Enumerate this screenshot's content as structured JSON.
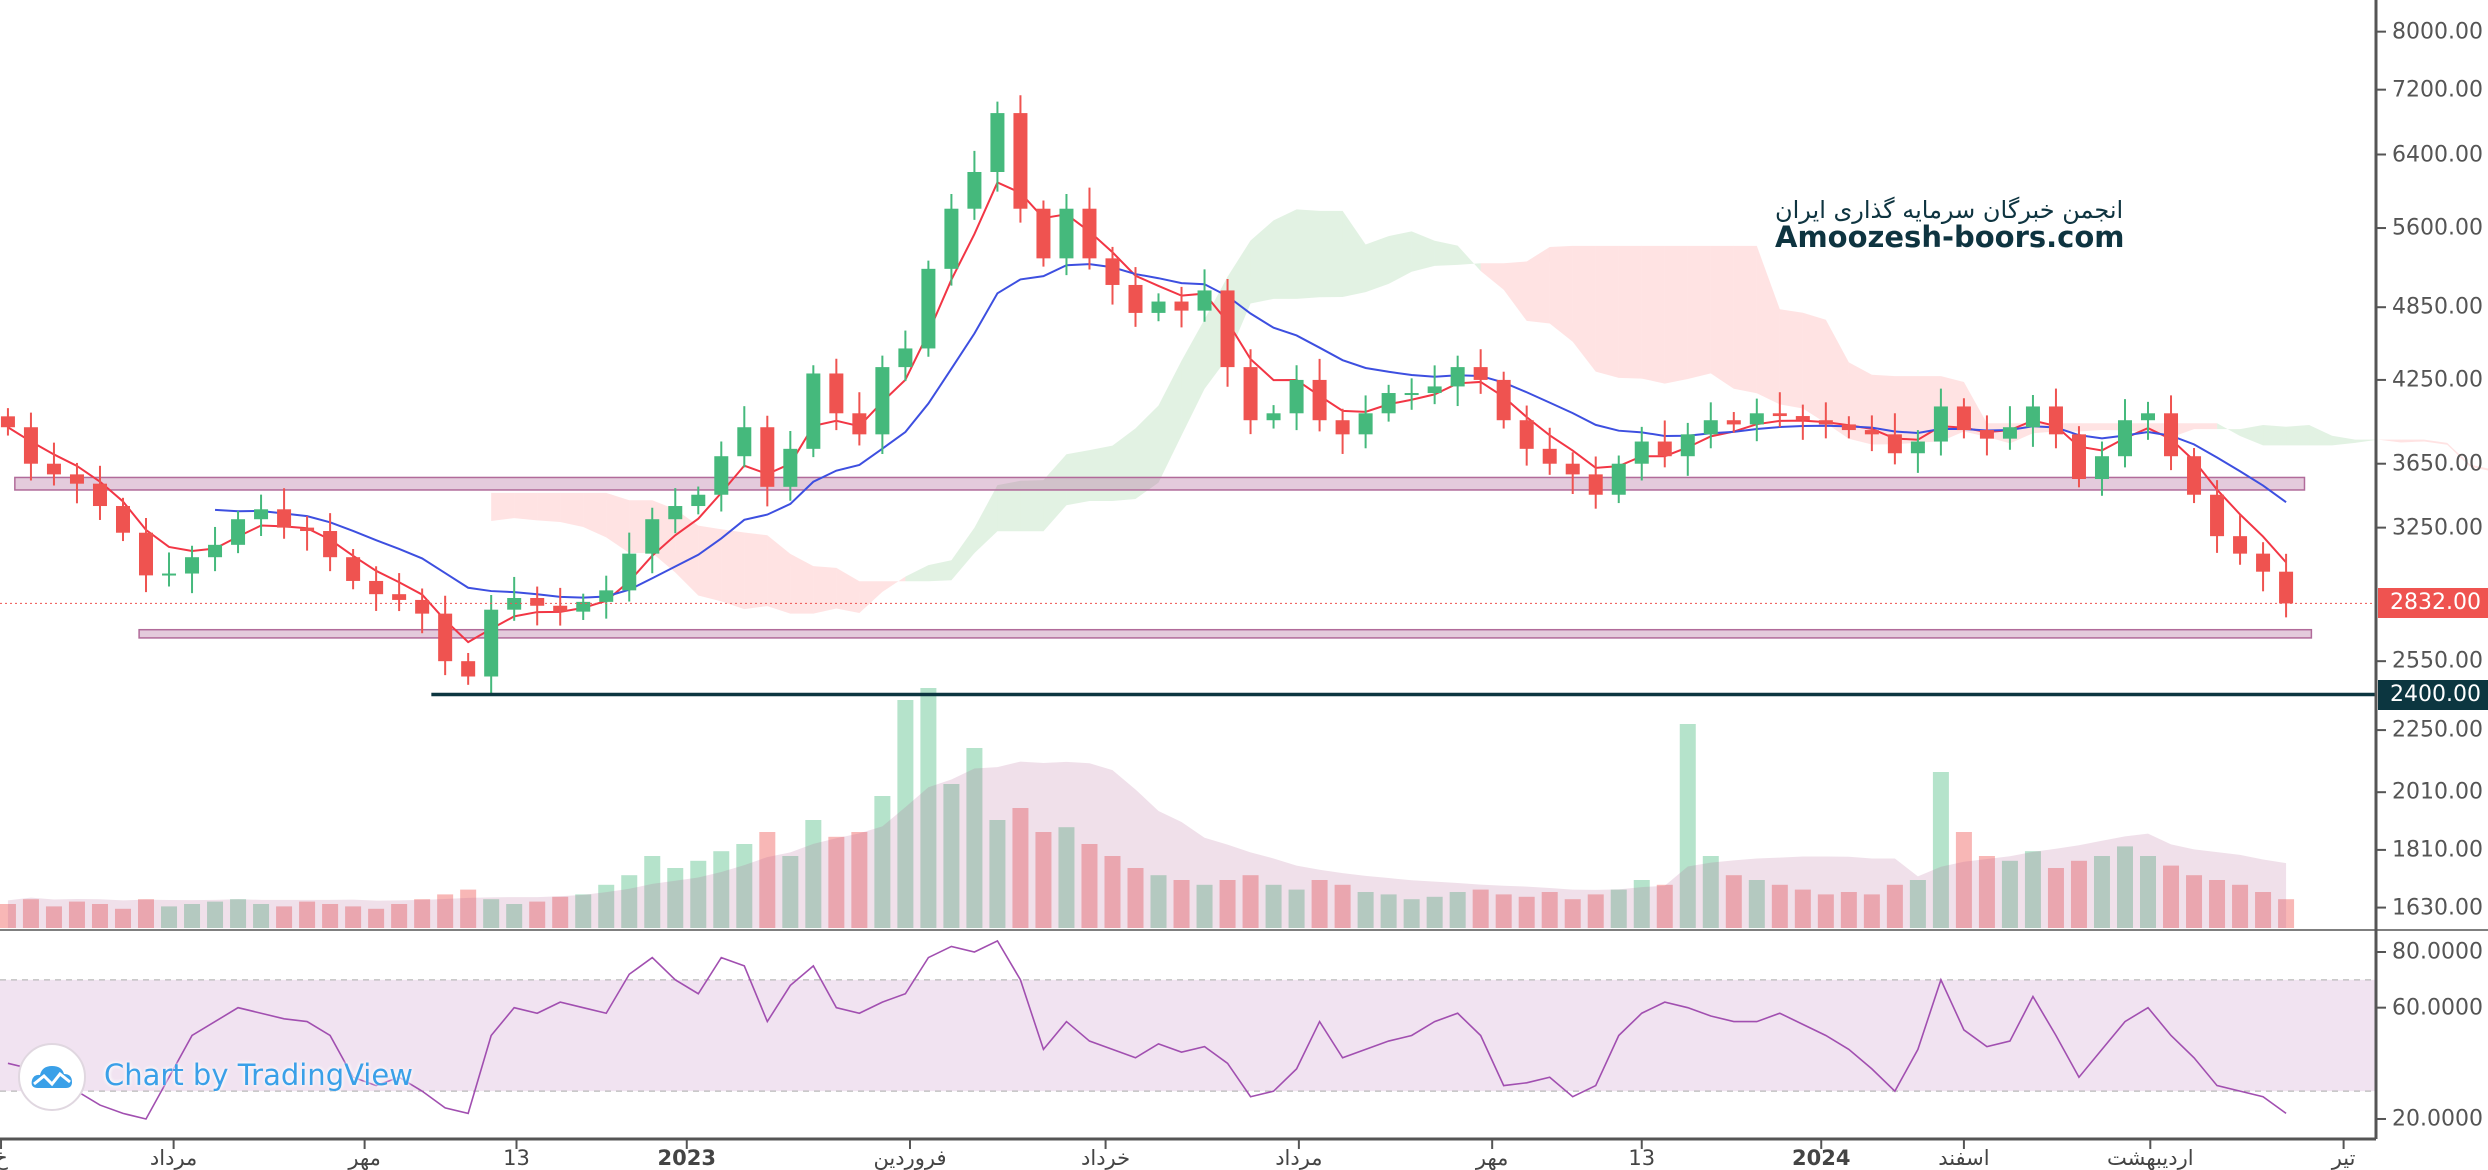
{
  "watermark": {
    "line1": "انجمن خبرگان سرمایه گذاری ایران",
    "line2": "Amoozesh-boors.com"
  },
  "branding": {
    "text": "Chart by TradingView"
  },
  "colors": {
    "up": "#45b97c",
    "down": "#ef5350",
    "ma_fast": "#f23645",
    "ma_slow": "#3d4fe0",
    "rsi": "#a14fb0",
    "last_price": "#ef5350",
    "level": "#0c3640",
    "zone": "#b16b9a"
  },
  "chart_data": {
    "type": "candlestick",
    "title": "",
    "scale": "log",
    "price_ticks": [
      "8000.00",
      "7200.00",
      "6400.00",
      "5600.00",
      "4850.00",
      "4250.00",
      "3650.00",
      "3250.00",
      "2550.00",
      "2250.00",
      "2010.00",
      "1810.00",
      "1630.00"
    ],
    "last_price": {
      "value": 2832,
      "label": "2832.00"
    },
    "level_line": {
      "value": 2400,
      "label": "2400.00",
      "start_index": 18.4
    },
    "zones": [
      {
        "top": 3560,
        "bottom": 3480,
        "start_index": 0.3,
        "end_index": 99.8
      },
      {
        "top": 2700,
        "bottom": 2660,
        "start_index": 5.7,
        "end_index": 100.1
      }
    ],
    "x_labels": [
      {
        "index": -0.3,
        "label": "خ"
      },
      {
        "index": 7.2,
        "label": "مرداد"
      },
      {
        "index": 15.5,
        "label": "مهر"
      },
      {
        "index": 22.1,
        "label": "13"
      },
      {
        "index": 29.5,
        "label": "2023"
      },
      {
        "index": 39.2,
        "label": "فروردین"
      },
      {
        "index": 47.7,
        "label": "خرداد"
      },
      {
        "index": 56.1,
        "label": "مرداد"
      },
      {
        "index": 64.5,
        "label": "مهر"
      },
      {
        "index": 71.0,
        "label": "13"
      },
      {
        "index": 78.8,
        "label": "2024"
      },
      {
        "index": 85.0,
        "label": "اسفند"
      },
      {
        "index": 93.1,
        "label": "اردیبهشت"
      },
      {
        "index": 101.5,
        "label": "تیر"
      }
    ],
    "closes": [
      3900,
      3650,
      3580,
      3520,
      3380,
      3220,
      2980,
      2990,
      3080,
      3150,
      3300,
      3360,
      3250,
      3230,
      3080,
      2950,
      2880,
      2850,
      2780,
      2550,
      2480,
      2800,
      2860,
      2820,
      2790,
      2840,
      2900,
      3100,
      3300,
      3380,
      3450,
      3700,
      3900,
      3500,
      3750,
      4300,
      4000,
      3850,
      4350,
      4500,
      5200,
      5800,
      6200,
      6900,
      5800,
      5300,
      5800,
      5300,
      5050,
      4800,
      4900,
      4820,
      5000,
      4350,
      3950,
      4000,
      4250,
      3950,
      3850,
      4000,
      4150,
      4150,
      4200,
      4350,
      4250,
      3950,
      3750,
      3650,
      3580,
      3450,
      3650,
      3800,
      3700,
      3850,
      3950,
      3920,
      4000,
      3980,
      3950,
      3920,
      3880,
      3850,
      3720,
      3800,
      4050,
      3880,
      3820,
      3900,
      4050,
      3850,
      3550,
      3700,
      3950,
      4000,
      3700,
      3450,
      3200,
      3100,
      3000,
      2832
    ],
    "volume": [
      10,
      12,
      9,
      11,
      10,
      8,
      12,
      9,
      10,
      11,
      12,
      10,
      9,
      11,
      10,
      9,
      8,
      10,
      12,
      14,
      16,
      12,
      10,
      11,
      13,
      14,
      18,
      22,
      30,
      25,
      28,
      32,
      35,
      40,
      30,
      45,
      38,
      40,
      55,
      95,
      100,
      60,
      75,
      45,
      50,
      40,
      42,
      35,
      30,
      25,
      22,
      20,
      18,
      20,
      22,
      18,
      16,
      20,
      18,
      15,
      14,
      12,
      13,
      15,
      16,
      14,
      13,
      15,
      12,
      14,
      16,
      20,
      18,
      85,
      30,
      22,
      20,
      18,
      16,
      14,
      15,
      14,
      18,
      20,
      65,
      40,
      30,
      28,
      32,
      25,
      28,
      30,
      34,
      30,
      26,
      22,
      20,
      18,
      15,
      12
    ],
    "rsi": {
      "ticks": [
        "80.0000",
        "60.0000",
        "20.0000"
      ],
      "band": [
        30,
        70
      ],
      "values": [
        40,
        38,
        35,
        30,
        25,
        22,
        20,
        35,
        50,
        55,
        60,
        58,
        56,
        55,
        50,
        35,
        32,
        35,
        30,
        24,
        22,
        50,
        60,
        58,
        62,
        60,
        58,
        72,
        78,
        70,
        65,
        78,
        75,
        55,
        68,
        75,
        60,
        58,
        62,
        65,
        78,
        82,
        80,
        84,
        70,
        45,
        55,
        48,
        45,
        42,
        47,
        44,
        46,
        40,
        28,
        30,
        38,
        55,
        42,
        45,
        48,
        50,
        55,
        58,
        50,
        32,
        33,
        35,
        28,
        32,
        50,
        58,
        62,
        60,
        57,
        55,
        55,
        58,
        54,
        50,
        45,
        38,
        30,
        45,
        70,
        52,
        46,
        48,
        64,
        50,
        35,
        45,
        55,
        60,
        50,
        42,
        32,
        30,
        28,
        22
      ]
    }
  }
}
